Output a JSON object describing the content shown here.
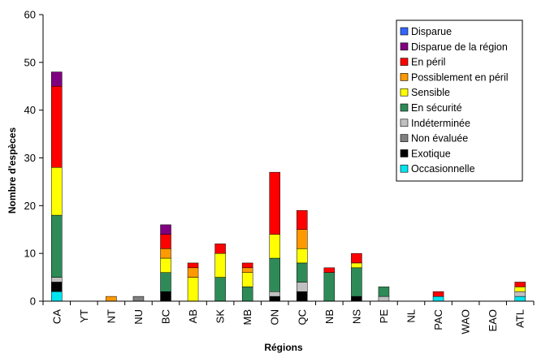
{
  "chart_data": {
    "type": "bar",
    "stacked": true,
    "title": "",
    "xlabel": "Régions",
    "ylabel": "Nombre d'espèces",
    "ylim": [
      0,
      60
    ],
    "yticks": [
      0,
      10,
      20,
      30,
      40,
      50,
      60
    ],
    "grid": false,
    "legend_position": "top-right",
    "categories": [
      "CA",
      "YT",
      "NT",
      "NU",
      "BC",
      "AB",
      "SK",
      "MB",
      "ON",
      "QC",
      "NB",
      "NS",
      "PE",
      "NL",
      "PAC",
      "WAO",
      "EAO",
      "ATL"
    ],
    "series": [
      {
        "name": "Occasionnelle",
        "color": "#00e5ef",
        "values": [
          2,
          0,
          0,
          0,
          0,
          0,
          0,
          0,
          0,
          0,
          0,
          0,
          0,
          0,
          1,
          0,
          0,
          1
        ]
      },
      {
        "name": "Exotique",
        "color": "#000000",
        "values": [
          2,
          0,
          0,
          0,
          2,
          0,
          0,
          0,
          1,
          2,
          0,
          1,
          0,
          0,
          0,
          0,
          0,
          0
        ]
      },
      {
        "name": "Non évaluée",
        "color": "#808080",
        "values": [
          0,
          0,
          0,
          1,
          0,
          0,
          0,
          0,
          0,
          0,
          0,
          0,
          0,
          0,
          0,
          0,
          0,
          0
        ]
      },
      {
        "name": "Indéterminée",
        "color": "#c0c0c0",
        "values": [
          1,
          0,
          0,
          0,
          0,
          0,
          0,
          0,
          1,
          2,
          0,
          0,
          1,
          0,
          0,
          0,
          0,
          1
        ]
      },
      {
        "name": "En sécurité",
        "color": "#2e8b57",
        "values": [
          13,
          0,
          0,
          0,
          4,
          0,
          5,
          3,
          7,
          4,
          6,
          6,
          2,
          0,
          0,
          0,
          0,
          0
        ]
      },
      {
        "name": "Sensible",
        "color": "#ffff00",
        "values": [
          10,
          0,
          0,
          0,
          3,
          5,
          5,
          3,
          5,
          3,
          0,
          1,
          0,
          0,
          0,
          0,
          0,
          1
        ]
      },
      {
        "name": "Possiblement en péril",
        "color": "#ff9900",
        "values": [
          0,
          0,
          1,
          0,
          2,
          2,
          0,
          1,
          0,
          4,
          0,
          0,
          0,
          0,
          0,
          0,
          0,
          0
        ]
      },
      {
        "name": "En péril",
        "color": "#ff0000",
        "values": [
          17,
          0,
          0,
          0,
          3,
          1,
          2,
          1,
          13,
          4,
          1,
          2,
          0,
          0,
          1,
          0,
          0,
          1
        ]
      },
      {
        "name": "Disparue de la région",
        "color": "#800080",
        "values": [
          3,
          0,
          0,
          0,
          2,
          0,
          0,
          0,
          0,
          0,
          0,
          0,
          0,
          0,
          0,
          0,
          0,
          0
        ]
      },
      {
        "name": "Disparue",
        "color": "#3366ff",
        "values": [
          0,
          0,
          0,
          0,
          0,
          0,
          0,
          0,
          0,
          0,
          0,
          0,
          0,
          0,
          0,
          0,
          0,
          0
        ]
      }
    ],
    "legend_order": [
      "Disparue",
      "Disparue de la région",
      "En péril",
      "Possiblement en péril",
      "Sensible",
      "En sécurité",
      "Indéterminée",
      "Non évaluée",
      "Exotique",
      "Occasionnelle"
    ]
  }
}
